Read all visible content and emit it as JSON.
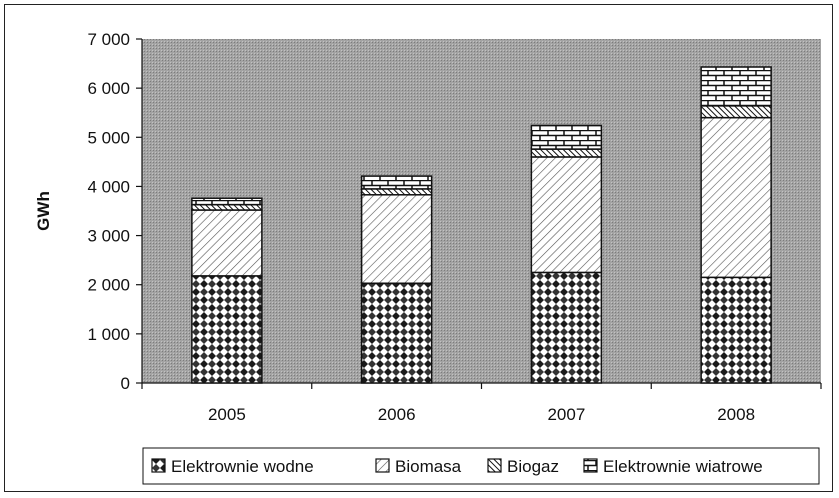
{
  "chart_data": {
    "type": "bar",
    "stacked": true,
    "title": "",
    "xlabel": "",
    "ylabel": "GWh",
    "ylim": [
      0,
      7000
    ],
    "yticks": [
      "0",
      "1 000",
      "2 000",
      "3 000",
      "4 000",
      "5 000",
      "6 000",
      "7 000"
    ],
    "ytick_values": [
      0,
      1000,
      2000,
      3000,
      4000,
      5000,
      6000,
      7000
    ],
    "categories": [
      "2005",
      "2006",
      "2007",
      "2008"
    ],
    "grid": false,
    "legend_position": "bottom",
    "series": [
      {
        "name": "Elektrownie wodne",
        "values": [
          2180,
          2030,
          2250,
          2150
        ],
        "pattern": "checker"
      },
      {
        "name": "Biomasa",
        "values": [
          1340,
          1800,
          2350,
          3250
        ],
        "pattern": "diagonal"
      },
      {
        "name": "Biogaz",
        "values": [
          110,
          120,
          160,
          240
        ],
        "pattern": "diagonal-dense"
      },
      {
        "name": "Elektrownie wiatrowe",
        "values": [
          130,
          260,
          480,
          790
        ],
        "pattern": "brick"
      }
    ],
    "colors": {
      "plot_background": "#9e9e9e",
      "bar_outline": "#111111"
    }
  }
}
